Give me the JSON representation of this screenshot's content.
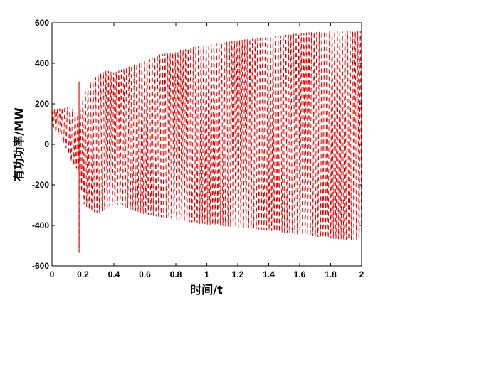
{
  "chart_data": {
    "type": "line",
    "title": "",
    "xlabel": "时间/t",
    "ylabel": "有功功率/MW",
    "xlim": [
      0,
      2
    ],
    "ylim": [
      -600,
      600
    ],
    "x_ticks": [
      0,
      0.2,
      0.4,
      0.6,
      0.8,
      1,
      1.2,
      1.4,
      1.6,
      1.8,
      2
    ],
    "x_tick_labels": [
      "0",
      "0.2",
      "0.4",
      "0.6",
      "0.8",
      "1",
      "1.2",
      "1.4",
      "1.6",
      "1.8",
      "2"
    ],
    "y_ticks": [
      -600,
      -400,
      -200,
      0,
      200,
      400,
      600
    ],
    "y_tick_labels": [
      "-600",
      "-400",
      "-200",
      "0",
      "200",
      "400",
      "600"
    ],
    "grid": false,
    "legend": "none",
    "series": [
      {
        "color": "#e00000",
        "line_style": "dashed",
        "oscillation_period": 0.0166,
        "spike": {
          "x": 0.175,
          "min": -535,
          "max": 310
        },
        "envelope": {
          "x": [
            0.0,
            0.05,
            0.1,
            0.13,
            0.16,
            0.175,
            0.2,
            0.25,
            0.3,
            0.35,
            0.4,
            0.45,
            0.5,
            0.6,
            0.7,
            0.8,
            0.9,
            1.0,
            1.2,
            1.4,
            1.6,
            1.8,
            2.0
          ],
          "upper": [
            170,
            175,
            185,
            175,
            150,
            140,
            240,
            310,
            345,
            365,
            355,
            370,
            385,
            410,
            445,
            455,
            480,
            490,
            515,
            530,
            550,
            560,
            560
          ],
          "lower": [
            80,
            40,
            -30,
            -95,
            -120,
            -130,
            -290,
            -330,
            -340,
            -320,
            -300,
            -300,
            -320,
            -345,
            -360,
            -370,
            -385,
            -395,
            -410,
            -425,
            -445,
            -465,
            -475
          ]
        }
      }
    ]
  }
}
